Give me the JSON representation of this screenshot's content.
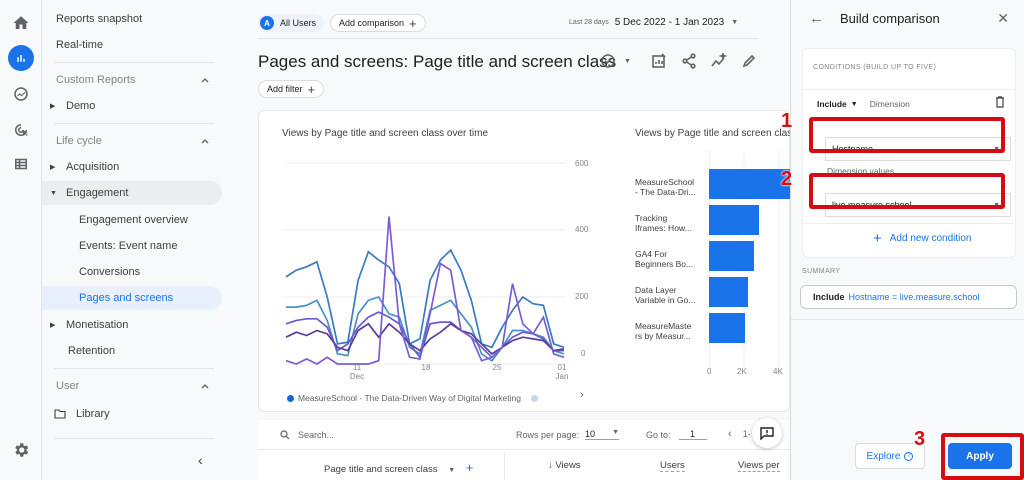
{
  "rail": {
    "icons": [
      "home-icon",
      "reports-icon",
      "explore-icon",
      "advertising-icon",
      "configure-icon",
      "settings-icon"
    ]
  },
  "nav": {
    "reports_snapshot": "Reports snapshot",
    "realtime": "Real-time",
    "custom_reports": "Custom Reports",
    "demo": "Demo",
    "life_cycle": "Life cycle",
    "acquisition": "Acquisition",
    "engagement": "Engagement",
    "engagement_overview": "Engagement overview",
    "events": "Events: Event name",
    "conversions": "Conversions",
    "pages_and_screens": "Pages and screens",
    "monetisation": "Monetisation",
    "retention": "Retention",
    "user": "User",
    "library": "Library"
  },
  "header": {
    "segment_avatar": "A",
    "segment_label": "All Users",
    "add_comparison": "Add comparison",
    "date_prefix": "Last 28 days",
    "date_range": "5 Dec 2022 - 1 Jan 2023",
    "page_title": "Pages and screens: Page title and screen class",
    "add_filter": "Add filter"
  },
  "chart_data": [
    {
      "type": "line",
      "title": "Views by Page title and screen class over time",
      "xlabel": "",
      "ylabel": "",
      "ylim": [
        0,
        600
      ],
      "y_ticks": [
        "0",
        "200",
        "400",
        "600"
      ],
      "x_ticks": [
        {
          "day": "11",
          "month": "Dec"
        },
        {
          "day": "18",
          "month": ""
        },
        {
          "day": "25",
          "month": ""
        },
        {
          "day": "01",
          "month": "Jan"
        }
      ],
      "x": [
        "5 Dec",
        "6 Dec",
        "7 Dec",
        "8 Dec",
        "9 Dec",
        "10 Dec",
        "11 Dec",
        "12 Dec",
        "13 Dec",
        "14 Dec",
        "15 Dec",
        "16 Dec",
        "17 Dec",
        "18 Dec",
        "19 Dec",
        "20 Dec",
        "21 Dec",
        "22 Dec",
        "23 Dec",
        "24 Dec",
        "25 Dec",
        "26 Dec",
        "27 Dec",
        "28 Dec",
        "29 Dec",
        "30 Dec",
        "31 Dec",
        "1 Jan"
      ],
      "series": [
        {
          "name": "MeasureSchool - The Data-Driven Way of Digital Marketing",
          "color": "#3a7bbf",
          "values": [
            260,
            280,
            290,
            305,
            200,
            60,
            65,
            250,
            335,
            310,
            290,
            240,
            60,
            75,
            250,
            310,
            340,
            280,
            190,
            60,
            50,
            110,
            160,
            200,
            180,
            175,
            60,
            50
          ]
        },
        {
          "name": "Tracking Iframes: How...",
          "color": "#4a90c8",
          "values": [
            170,
            170,
            175,
            190,
            130,
            30,
            25,
            150,
            190,
            200,
            150,
            140,
            50,
            30,
            160,
            175,
            190,
            150,
            110,
            30,
            10,
            50,
            100,
            100,
            90,
            80,
            40,
            30
          ]
        },
        {
          "name": "GA4 For Beginners Bo...",
          "color": "#6a5acd",
          "values": [
            120,
            130,
            135,
            135,
            110,
            40,
            60,
            110,
            140,
            155,
            140,
            120,
            60,
            20,
            120,
            125,
            125,
            100,
            80,
            50,
            20,
            50,
            80,
            95,
            90,
            75,
            40,
            40
          ]
        },
        {
          "name": "Data Layer Variable in Go...",
          "color": "#5a3e9a",
          "values": [
            80,
            95,
            85,
            100,
            90,
            50,
            40,
            100,
            120,
            80,
            120,
            95,
            60,
            40,
            75,
            95,
            120,
            100,
            90,
            60,
            30,
            50,
            70,
            80,
            75,
            70,
            40,
            45
          ]
        },
        {
          "name": "MeasureMasters by Measur...",
          "color": "#7b5cd6",
          "values": [
            10,
            0,
            15,
            0,
            20,
            0,
            0,
            0,
            0,
            10,
            440,
            120,
            20,
            15,
            150,
            300,
            280,
            100,
            80,
            10,
            20,
            50,
            240,
            120,
            90,
            140,
            30,
            20
          ]
        }
      ],
      "legend": [
        "MeasureSchool - The Data-Driven Way of Digital Marketing"
      ]
    },
    {
      "type": "bar",
      "title": "Views by Page title and screen class",
      "orientation": "horizontal",
      "categories": [
        "MeasureSchool - The Data-Dri...",
        "Tracking Iframes: How...",
        "GA4 For Beginners Bo...",
        "Data Layer Variable in Go...",
        "MeasureMasters by Measur..."
      ],
      "values": [
        4600,
        2800,
        2500,
        2200,
        2000
      ],
      "x_ticks": [
        "0",
        "2K",
        "4K"
      ],
      "xlim": [
        0,
        4600
      ]
    }
  ],
  "bar_labels": [
    [
      "MeasureSchool",
      "- The Data-Dri..."
    ],
    [
      "Tracking",
      "Iframes: How..."
    ],
    [
      "GA4 For",
      "Beginners Bo..."
    ],
    [
      "Data Layer",
      "Variable in Go..."
    ],
    [
      "MeasureMaste",
      "rs by Measur..."
    ]
  ],
  "table": {
    "search_placeholder": "Search...",
    "rows_per_page_label": "Rows per page:",
    "rows_per_page_value": "10",
    "goto_label": "Go to:",
    "goto_value": "1",
    "pager_text": "1-",
    "columns": [
      "Page title and screen class",
      "Views",
      "Users",
      "Views per"
    ]
  },
  "panel": {
    "title": "Build comparison",
    "conditions_header": "CONDITIONS (BUILD UP TO FIVE)",
    "include_label": "Include",
    "dimension_label": "Dimension",
    "dimension_value": "Hostname",
    "dimension_values_label": "Dimension values",
    "dimension_values_value": "live.measure.school",
    "add_new_condition": "Add new condition",
    "summary_label": "SUMMARY",
    "summary_include": "Include",
    "summary_expression": "Hostname = live.measure.school",
    "explore_label": "Explore",
    "apply_label": "Apply"
  },
  "annotations": {
    "step1": "1",
    "step2": "2",
    "step3": "3",
    "highlight_color": "#d30d12"
  }
}
